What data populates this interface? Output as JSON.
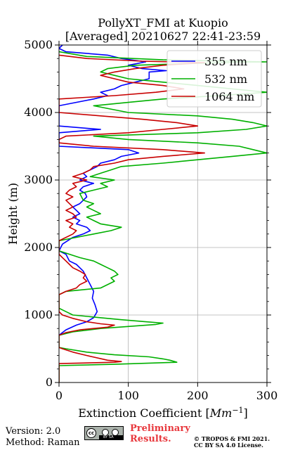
{
  "chart_data": {
    "type": "line",
    "title_line1": "PollyXT_FMI at Kuopio",
    "title_line2": "[Averaged] 20210627 22:41-23:59",
    "xlabel": "Extinction Coefficient [",
    "xlabel_unit_base": "Mm",
    "xlabel_unit_exp": "−1",
    "xlabel_close": "]",
    "ylabel": "Height (m)",
    "xlim": [
      0,
      300
    ],
    "ylim": [
      0,
      5000
    ],
    "x_ticks": [
      0,
      100,
      200,
      300
    ],
    "y_ticks": [
      0,
      1000,
      2000,
      3000,
      4000,
      5000
    ],
    "x_tick_labels": [
      "0",
      "100",
      "200",
      "300"
    ],
    "y_tick_labels": [
      "0",
      "1000",
      "2000",
      "3000",
      "4000",
      "5000"
    ],
    "grid": true,
    "legend_position": "top-right",
    "series": [
      {
        "name": "355 nm",
        "color": "#0000ff",
        "points": [
          [
            0,
            700
          ],
          [
            10,
            780
          ],
          [
            25,
            850
          ],
          [
            40,
            900
          ],
          [
            50,
            960
          ],
          [
            55,
            1050
          ],
          [
            52,
            1150
          ],
          [
            48,
            1250
          ],
          [
            50,
            1350
          ],
          [
            45,
            1450
          ],
          [
            40,
            1550
          ],
          [
            35,
            1650
          ],
          [
            25,
            1750
          ],
          [
            15,
            1800
          ],
          [
            10,
            1900
          ],
          [
            0,
            1950
          ],
          [
            5,
            2050
          ],
          [
            20,
            2150
          ],
          [
            35,
            2200
          ],
          [
            45,
            2250
          ],
          [
            40,
            2300
          ],
          [
            25,
            2350
          ],
          [
            30,
            2400
          ],
          [
            20,
            2450
          ],
          [
            30,
            2500
          ],
          [
            25,
            2550
          ],
          [
            20,
            2600
          ],
          [
            30,
            2650
          ],
          [
            35,
            2700
          ],
          [
            40,
            2750
          ],
          [
            38,
            2800
          ],
          [
            30,
            2850
          ],
          [
            35,
            2900
          ],
          [
            50,
            2950
          ],
          [
            30,
            3000
          ],
          [
            40,
            3050
          ],
          [
            35,
            3100
          ],
          [
            45,
            3150
          ],
          [
            55,
            3200
          ],
          [
            60,
            3250
          ],
          [
            80,
            3300
          ],
          [
            90,
            3350
          ],
          [
            115,
            3400
          ],
          [
            100,
            3450
          ],
          [
            0,
            3500
          ],
          [
            0,
            3550
          ],
          [
            0,
            3600
          ],
          [
            0,
            3700
          ],
          [
            60,
            3750
          ],
          [
            0,
            3800
          ],
          [
            0,
            3900
          ],
          [
            0,
            4000
          ],
          [
            0,
            4100
          ],
          [
            50,
            4200
          ],
          [
            70,
            4250
          ],
          [
            60,
            4300
          ],
          [
            80,
            4350
          ],
          [
            90,
            4400
          ],
          [
            110,
            4450
          ],
          [
            130,
            4500
          ],
          [
            130,
            4600
          ],
          [
            155,
            4620
          ],
          [
            120,
            4650
          ],
          [
            100,
            4700
          ],
          [
            125,
            4750
          ],
          [
            90,
            4800
          ],
          [
            70,
            4850
          ],
          [
            10,
            4900
          ],
          [
            0,
            4950
          ],
          [
            5,
            5000
          ]
        ]
      },
      {
        "name": "532 nm",
        "color": "#00b000",
        "points": [
          [
            0,
            0
          ],
          [
            0,
            250
          ],
          [
            80,
            270
          ],
          [
            170,
            300
          ],
          [
            160,
            330
          ],
          [
            150,
            350
          ],
          [
            130,
            380
          ],
          [
            80,
            410
          ],
          [
            40,
            450
          ],
          [
            10,
            500
          ],
          [
            0,
            520
          ],
          [
            0,
            700
          ],
          [
            20,
            750
          ],
          [
            60,
            800
          ],
          [
            100,
            830
          ],
          [
            140,
            860
          ],
          [
            150,
            880
          ],
          [
            125,
            900
          ],
          [
            90,
            930
          ],
          [
            50,
            970
          ],
          [
            20,
            1000
          ],
          [
            10,
            1050
          ],
          [
            0,
            1100
          ],
          [
            0,
            1300
          ],
          [
            10,
            1350
          ],
          [
            60,
            1400
          ],
          [
            80,
            1500
          ],
          [
            75,
            1550
          ],
          [
            85,
            1600
          ],
          [
            80,
            1650
          ],
          [
            70,
            1700
          ],
          [
            60,
            1750
          ],
          [
            50,
            1800
          ],
          [
            30,
            1850
          ],
          [
            0,
            1950
          ],
          [
            0,
            2100
          ],
          [
            50,
            2200
          ],
          [
            75,
            2250
          ],
          [
            90,
            2300
          ],
          [
            60,
            2350
          ],
          [
            50,
            2400
          ],
          [
            40,
            2450
          ],
          [
            60,
            2500
          ],
          [
            50,
            2550
          ],
          [
            40,
            2600
          ],
          [
            50,
            2650
          ],
          [
            35,
            2700
          ],
          [
            30,
            2800
          ],
          [
            50,
            2850
          ],
          [
            70,
            2900
          ],
          [
            60,
            2950
          ],
          [
            80,
            3000
          ],
          [
            45,
            3050
          ],
          [
            60,
            3100
          ],
          [
            75,
            3150
          ],
          [
            90,
            3200
          ],
          [
            150,
            3250
          ],
          [
            200,
            3300
          ],
          [
            250,
            3350
          ],
          [
            300,
            3400
          ],
          [
            280,
            3450
          ],
          [
            260,
            3500
          ],
          [
            200,
            3550
          ],
          [
            100,
            3600
          ],
          [
            50,
            3650
          ],
          [
            200,
            3700
          ],
          [
            270,
            3750
          ],
          [
            300,
            3800
          ],
          [
            280,
            3850
          ],
          [
            250,
            3900
          ],
          [
            200,
            3950
          ],
          [
            100,
            4000
          ],
          [
            50,
            4100
          ],
          [
            100,
            4150
          ],
          [
            150,
            4200
          ],
          [
            230,
            4250
          ],
          [
            300,
            4300
          ],
          [
            250,
            4350
          ],
          [
            200,
            4400
          ],
          [
            150,
            4450
          ],
          [
            100,
            4500
          ],
          [
            80,
            4550
          ],
          [
            60,
            4600
          ],
          [
            70,
            4650
          ],
          [
            110,
            4700
          ],
          [
            200,
            4730
          ],
          [
            300,
            4750
          ],
          [
            150,
            4780
          ],
          [
            40,
            4830
          ],
          [
            0,
            4900
          ]
        ]
      },
      {
        "name": "1064 nm",
        "color": "#c80000",
        "points": [
          [
            0,
            0
          ],
          [
            0,
            280
          ],
          [
            40,
            290
          ],
          [
            80,
            300
          ],
          [
            90,
            310
          ],
          [
            70,
            330
          ],
          [
            40,
            400
          ],
          [
            20,
            450
          ],
          [
            5,
            500
          ],
          [
            0,
            520
          ],
          [
            0,
            700
          ],
          [
            10,
            740
          ],
          [
            30,
            780
          ],
          [
            50,
            800
          ],
          [
            70,
            820
          ],
          [
            80,
            850
          ],
          [
            60,
            870
          ],
          [
            40,
            900
          ],
          [
            20,
            950
          ],
          [
            5,
            1000
          ],
          [
            0,
            1050
          ],
          [
            0,
            1300
          ],
          [
            10,
            1350
          ],
          [
            25,
            1400
          ],
          [
            30,
            1450
          ],
          [
            40,
            1500
          ],
          [
            35,
            1550
          ],
          [
            38,
            1600
          ],
          [
            30,
            1650
          ],
          [
            20,
            1700
          ],
          [
            15,
            1750
          ],
          [
            10,
            1800
          ],
          [
            5,
            1850
          ],
          [
            0,
            1900
          ],
          [
            0,
            2100
          ],
          [
            10,
            2150
          ],
          [
            20,
            2200
          ],
          [
            25,
            2250
          ],
          [
            15,
            2300
          ],
          [
            20,
            2350
          ],
          [
            10,
            2400
          ],
          [
            25,
            2450
          ],
          [
            20,
            2500
          ],
          [
            10,
            2550
          ],
          [
            20,
            2600
          ],
          [
            15,
            2650
          ],
          [
            10,
            2700
          ],
          [
            20,
            2750
          ],
          [
            10,
            2800
          ],
          [
            15,
            2850
          ],
          [
            25,
            2900
          ],
          [
            20,
            2950
          ],
          [
            40,
            3000
          ],
          [
            20,
            3050
          ],
          [
            35,
            3100
          ],
          [
            45,
            3150
          ],
          [
            50,
            3200
          ],
          [
            80,
            3250
          ],
          [
            100,
            3300
          ],
          [
            150,
            3350
          ],
          [
            210,
            3400
          ],
          [
            150,
            3450
          ],
          [
            50,
            3500
          ],
          [
            0,
            3550
          ],
          [
            0,
            3600
          ],
          [
            10,
            3650
          ],
          [
            100,
            3700
          ],
          [
            150,
            3750
          ],
          [
            200,
            3800
          ],
          [
            170,
            3850
          ],
          [
            120,
            3900
          ],
          [
            60,
            3950
          ],
          [
            0,
            4000
          ],
          [
            0,
            4200
          ],
          [
            80,
            4250
          ],
          [
            140,
            4300
          ],
          [
            180,
            4350
          ],
          [
            150,
            4400
          ],
          [
            100,
            4450
          ],
          [
            80,
            4500
          ],
          [
            60,
            4550
          ],
          [
            80,
            4600
          ],
          [
            110,
            4650
          ],
          [
            150,
            4700
          ],
          [
            180,
            4720
          ],
          [
            210,
            4740
          ],
          [
            120,
            4760
          ],
          [
            40,
            4800
          ],
          [
            0,
            4850
          ]
        ]
      }
    ]
  },
  "footer": {
    "version": "Version: 2.0",
    "method": "Method: Raman",
    "cc_mark": "cc",
    "cc_strip": "BY  SA",
    "preliminary_line1": "Preliminary",
    "preliminary_line2": "Results.",
    "copyright_line1": "© TROPOS & FMI 2021.",
    "copyright_line2": "CC BY SA 4.0 License."
  }
}
